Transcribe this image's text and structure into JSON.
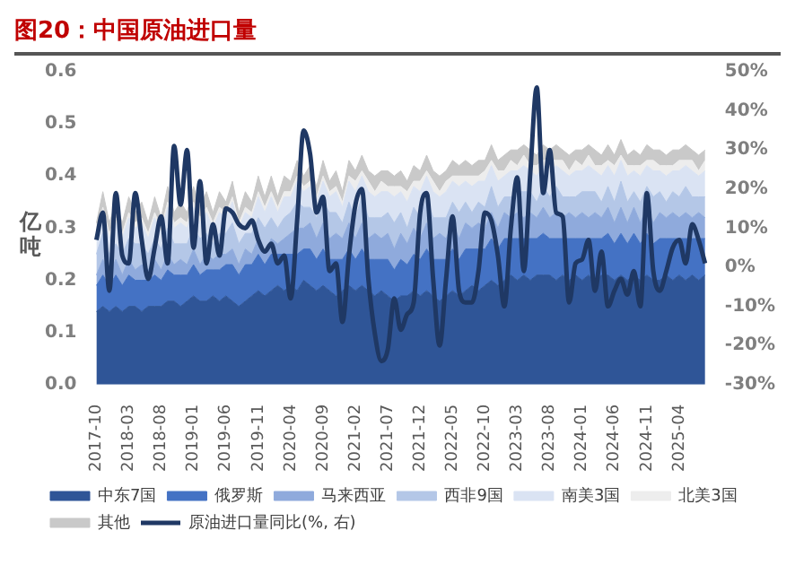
{
  "chart_data": {
    "type": "area",
    "title": "图20：中国原油进口量",
    "ylabel": "亿吨",
    "stacked": true,
    "legend": "bottom",
    "grid": false,
    "categories": [
      "2017-10",
      null,
      null,
      null,
      null,
      "2018-03",
      null,
      null,
      null,
      null,
      "2018-08",
      null,
      null,
      null,
      null,
      "2019-01",
      null,
      null,
      null,
      null,
      "2019-06",
      null,
      null,
      null,
      null,
      "2019-11",
      null,
      null,
      null,
      null,
      "2020-04",
      null,
      null,
      null,
      null,
      "2020-09",
      null,
      null,
      null,
      null,
      "2021-02",
      null,
      null,
      null,
      null,
      "2021-07",
      null,
      null,
      null,
      null,
      "2021-12",
      null,
      null,
      null,
      null,
      "2022-05",
      null,
      null,
      null,
      null,
      "2022-10",
      null,
      null,
      null,
      null,
      "2023-03",
      null,
      null,
      null,
      null,
      "2023-08",
      null,
      null,
      null,
      null,
      "2024-01",
      null,
      null,
      null,
      null,
      "2024-06",
      null,
      null,
      null,
      null,
      "2024-11",
      null,
      null,
      null,
      null,
      "2025-04",
      null,
      null,
      null,
      null
    ],
    "ylim": [
      0,
      0.6
    ],
    "yticks": [
      {
        "value": 0,
        "label": "0.0"
      },
      {
        "value": 0.1,
        "label": "0.1"
      },
      {
        "value": 0.2,
        "label": "0.2"
      },
      {
        "value": 0.3,
        "label": "0.3"
      },
      {
        "value": 0.4,
        "label": "0.4"
      },
      {
        "value": 0.5,
        "label": "0.5"
      },
      {
        "value": 0.6,
        "label": "0.6"
      }
    ],
    "y2lim": [
      -30,
      50
    ],
    "y2ticks": [
      {
        "value": -30,
        "label": "-30%"
      },
      {
        "value": -20,
        "label": "-20%"
      },
      {
        "value": -10,
        "label": "-10%"
      },
      {
        "value": 0,
        "label": "0%"
      },
      {
        "value": 10,
        "label": "10%"
      },
      {
        "value": 20,
        "label": "20%"
      },
      {
        "value": 30,
        "label": "30%"
      },
      {
        "value": 40,
        "label": "40%"
      },
      {
        "value": 50,
        "label": "50%"
      }
    ],
    "series": [
      {
        "name": "中东7国",
        "color": "#2f5597",
        "values": [
          0.14,
          0.15,
          0.14,
          0.15,
          0.14,
          0.15,
          0.15,
          0.14,
          0.15,
          0.15,
          0.15,
          0.16,
          0.16,
          0.15,
          0.16,
          0.17,
          0.16,
          0.16,
          0.17,
          0.16,
          0.17,
          0.16,
          0.15,
          0.16,
          0.17,
          0.18,
          0.17,
          0.18,
          0.19,
          0.18,
          0.19,
          0.18,
          0.2,
          0.19,
          0.18,
          0.19,
          0.18,
          0.17,
          0.18,
          0.19,
          0.18,
          0.19,
          0.18,
          0.17,
          0.18,
          0.17,
          0.16,
          0.17,
          0.17,
          0.18,
          0.17,
          0.18,
          0.17,
          0.16,
          0.17,
          0.18,
          0.17,
          0.18,
          0.19,
          0.18,
          0.19,
          0.2,
          0.19,
          0.2,
          0.21,
          0.2,
          0.21,
          0.2,
          0.21,
          0.21,
          0.21,
          0.2,
          0.21,
          0.2,
          0.21,
          0.2,
          0.21,
          0.2,
          0.21,
          0.21,
          0.2,
          0.21,
          0.2,
          0.21,
          0.2,
          0.21,
          0.2,
          0.2,
          0.21,
          0.2,
          0.21,
          0.2,
          0.21,
          0.2,
          0.21
        ]
      },
      {
        "name": "俄罗斯",
        "color": "#4472c4",
        "values": [
          0.05,
          0.06,
          0.05,
          0.06,
          0.05,
          0.06,
          0.05,
          0.06,
          0.05,
          0.06,
          0.05,
          0.06,
          0.05,
          0.06,
          0.05,
          0.06,
          0.05,
          0.06,
          0.05,
          0.06,
          0.06,
          0.07,
          0.06,
          0.07,
          0.06,
          0.07,
          0.06,
          0.07,
          0.06,
          0.07,
          0.06,
          0.07,
          0.06,
          0.07,
          0.06,
          0.07,
          0.06,
          0.07,
          0.06,
          0.07,
          0.06,
          0.07,
          0.06,
          0.07,
          0.06,
          0.07,
          0.06,
          0.07,
          0.06,
          0.07,
          0.07,
          0.08,
          0.07,
          0.08,
          0.07,
          0.08,
          0.07,
          0.08,
          0.07,
          0.08,
          0.07,
          0.08,
          0.07,
          0.08,
          0.07,
          0.08,
          0.07,
          0.08,
          0.07,
          0.08,
          0.07,
          0.08,
          0.07,
          0.08,
          0.07,
          0.08,
          0.07,
          0.08,
          0.07,
          0.08,
          0.07,
          0.08,
          0.07,
          0.08,
          0.07,
          0.08,
          0.07,
          0.08,
          0.07,
          0.08,
          0.07,
          0.08,
          0.07,
          0.08,
          0.07
        ]
      },
      {
        "name": "马来西亚",
        "color": "#8faadc",
        "values": [
          0.02,
          0.03,
          0.02,
          0.03,
          0.02,
          0.03,
          0.02,
          0.03,
          0.02,
          0.03,
          0.02,
          0.03,
          0.02,
          0.03,
          0.02,
          0.03,
          0.02,
          0.03,
          0.02,
          0.03,
          0.02,
          0.03,
          0.02,
          0.03,
          0.02,
          0.03,
          0.02,
          0.03,
          0.02,
          0.03,
          0.04,
          0.05,
          0.04,
          0.05,
          0.04,
          0.05,
          0.04,
          0.05,
          0.04,
          0.05,
          0.04,
          0.05,
          0.04,
          0.05,
          0.04,
          0.05,
          0.04,
          0.05,
          0.04,
          0.05,
          0.04,
          0.05,
          0.04,
          0.05,
          0.04,
          0.05,
          0.04,
          0.05,
          0.04,
          0.05,
          0.04,
          0.05,
          0.04,
          0.05,
          0.04,
          0.05,
          0.04,
          0.05,
          0.04,
          0.05,
          0.04,
          0.05,
          0.04,
          0.05,
          0.04,
          0.05,
          0.04,
          0.05,
          0.04,
          0.05,
          0.04,
          0.05,
          0.04,
          0.05,
          0.04,
          0.05,
          0.04,
          0.05,
          0.04,
          0.05,
          0.04,
          0.05,
          0.04,
          0.05,
          0.04
        ]
      },
      {
        "name": "西非9国",
        "color": "#b4c7e7",
        "values": [
          0.04,
          0.05,
          0.04,
          0.03,
          0.04,
          0.04,
          0.05,
          0.04,
          0.03,
          0.04,
          0.04,
          0.05,
          0.04,
          0.03,
          0.04,
          0.04,
          0.05,
          0.04,
          0.03,
          0.04,
          0.04,
          0.05,
          0.04,
          0.03,
          0.04,
          0.04,
          0.05,
          0.04,
          0.03,
          0.04,
          0.04,
          0.05,
          0.04,
          0.03,
          0.04,
          0.04,
          0.05,
          0.04,
          0.03,
          0.04,
          0.04,
          0.05,
          0.04,
          0.03,
          0.04,
          0.04,
          0.05,
          0.04,
          0.03,
          0.04,
          0.04,
          0.05,
          0.04,
          0.03,
          0.04,
          0.04,
          0.05,
          0.04,
          0.03,
          0.04,
          0.04,
          0.05,
          0.04,
          0.03,
          0.04,
          0.04,
          0.05,
          0.04,
          0.03,
          0.04,
          0.04,
          0.05,
          0.04,
          0.03,
          0.04,
          0.04,
          0.05,
          0.04,
          0.03,
          0.04,
          0.04,
          0.05,
          0.04,
          0.03,
          0.04,
          0.04,
          0.05,
          0.04,
          0.03,
          0.04,
          0.04,
          0.05,
          0.04,
          0.03,
          0.04
        ]
      },
      {
        "name": "南美3国",
        "color": "#dae3f3",
        "values": [
          0.03,
          0.04,
          0.03,
          0.04,
          0.03,
          0.04,
          0.03,
          0.04,
          0.03,
          0.04,
          0.03,
          0.04,
          0.03,
          0.04,
          0.03,
          0.04,
          0.03,
          0.04,
          0.03,
          0.04,
          0.03,
          0.04,
          0.03,
          0.04,
          0.03,
          0.04,
          0.03,
          0.04,
          0.03,
          0.04,
          0.03,
          0.04,
          0.03,
          0.04,
          0.03,
          0.04,
          0.03,
          0.04,
          0.03,
          0.04,
          0.05,
          0.04,
          0.05,
          0.04,
          0.05,
          0.04,
          0.05,
          0.04,
          0.05,
          0.04,
          0.05,
          0.04,
          0.05,
          0.04,
          0.05,
          0.04,
          0.05,
          0.04,
          0.05,
          0.04,
          0.05,
          0.04,
          0.05,
          0.04,
          0.05,
          0.04,
          0.05,
          0.04,
          0.05,
          0.04,
          0.05,
          0.04,
          0.05,
          0.04,
          0.05,
          0.04,
          0.05,
          0.04,
          0.05,
          0.04,
          0.05,
          0.04,
          0.05,
          0.04,
          0.05,
          0.04,
          0.05,
          0.04,
          0.05,
          0.04,
          0.05,
          0.04,
          0.05,
          0.04,
          0.05
        ]
      },
      {
        "name": "北美3国",
        "color": "#ededed",
        "values": [
          0.01,
          0.01,
          0.01,
          0.01,
          0.01,
          0.01,
          0.01,
          0.01,
          0.01,
          0.01,
          0.01,
          0.01,
          0.01,
          0.01,
          0.01,
          0.01,
          0.01,
          0.01,
          0.01,
          0.01,
          0.01,
          0.01,
          0.01,
          0.01,
          0.01,
          0.01,
          0.01,
          0.01,
          0.01,
          0.01,
          0.01,
          0.01,
          0.01,
          0.01,
          0.01,
          0.01,
          0.01,
          0.01,
          0.01,
          0.01,
          0.02,
          0.01,
          0.02,
          0.01,
          0.02,
          0.01,
          0.02,
          0.01,
          0.02,
          0.01,
          0.02,
          0.01,
          0.02,
          0.01,
          0.02,
          0.01,
          0.02,
          0.01,
          0.02,
          0.01,
          0.02,
          0.01,
          0.02,
          0.01,
          0.02,
          0.01,
          0.02,
          0.01,
          0.02,
          0.01,
          0.02,
          0.01,
          0.02,
          0.01,
          0.02,
          0.01,
          0.02,
          0.01,
          0.02,
          0.01,
          0.02,
          0.01,
          0.02,
          0.01,
          0.02,
          0.01,
          0.02,
          0.01,
          0.02,
          0.01,
          0.02,
          0.01,
          0.02,
          0.01,
          0.02
        ]
      },
      {
        "name": "其他",
        "color": "#c9c9c9",
        "values": [
          0.02,
          0.03,
          0.02,
          0.03,
          0.02,
          0.03,
          0.02,
          0.03,
          0.02,
          0.03,
          0.02,
          0.03,
          0.02,
          0.03,
          0.02,
          0.03,
          0.02,
          0.03,
          0.02,
          0.03,
          0.02,
          0.03,
          0.02,
          0.03,
          0.02,
          0.03,
          0.02,
          0.03,
          0.02,
          0.03,
          0.02,
          0.03,
          0.02,
          0.03,
          0.02,
          0.03,
          0.02,
          0.03,
          0.02,
          0.03,
          0.02,
          0.03,
          0.02,
          0.03,
          0.02,
          0.03,
          0.02,
          0.03,
          0.02,
          0.03,
          0.02,
          0.03,
          0.02,
          0.03,
          0.02,
          0.03,
          0.02,
          0.03,
          0.02,
          0.03,
          0.02,
          0.03,
          0.02,
          0.03,
          0.02,
          0.03,
          0.02,
          0.03,
          0.02,
          0.03,
          0.02,
          0.03,
          0.02,
          0.03,
          0.02,
          0.03,
          0.02,
          0.03,
          0.02,
          0.03,
          0.02,
          0.03,
          0.02,
          0.03,
          0.02,
          0.03,
          0.02,
          0.03,
          0.02,
          0.03,
          0.02,
          0.03,
          0.02,
          0.03,
          0.02
        ]
      },
      {
        "name": "原油进口量同比(%, 右)",
        "type": "line",
        "axis": "y2",
        "color": "#1f3864",
        "values": [
          7,
          14,
          -6,
          19,
          3,
          1,
          19,
          7,
          -3,
          5,
          13,
          1,
          31,
          16,
          30,
          5,
          22,
          1,
          11,
          3,
          15,
          14,
          11,
          10,
          12,
          7,
          4,
          6,
          1,
          3,
          -8,
          12,
          35,
          29,
          14,
          18,
          -1,
          1,
          -14,
          3,
          16,
          20,
          -3,
          -17,
          -24,
          -21,
          -8,
          -16,
          -12,
          -9,
          14,
          19,
          -3,
          -20,
          -3,
          13,
          -6,
          -9,
          -9,
          -1,
          14,
          12,
          3,
          -10,
          10,
          23,
          -1,
          24,
          46,
          19,
          30,
          14,
          13,
          -9,
          1,
          2,
          7,
          -6,
          4,
          -10,
          -6,
          -3,
          -7,
          -1,
          -10,
          19,
          -1,
          -6,
          -1,
          5,
          7,
          1,
          11,
          7,
          1
        ]
      }
    ]
  }
}
